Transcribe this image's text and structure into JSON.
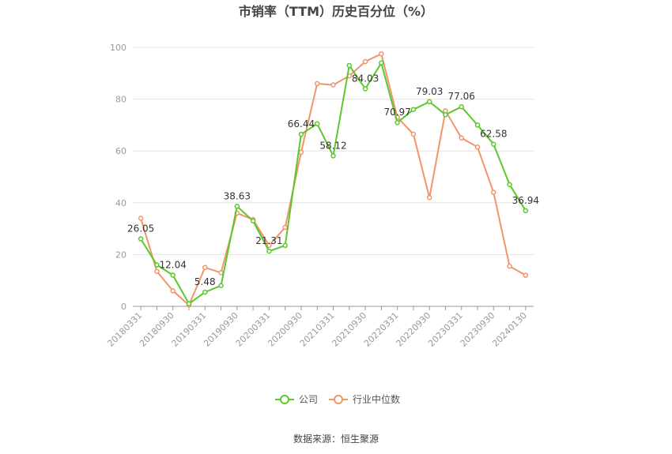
{
  "chart_data": {
    "type": "line",
    "title": "市销率（TTM）历史百分位（%）",
    "xlabel": "",
    "ylabel": "",
    "ylim": [
      0,
      100
    ],
    "yticks": [
      0,
      20,
      40,
      60,
      80,
      100
    ],
    "grid": true,
    "legend_position": "bottom",
    "x": [
      "20180331",
      "20180630",
      "20180930",
      "20181231",
      "20190331",
      "20190630",
      "20190930",
      "20191231",
      "20200331",
      "20200630",
      "20200930",
      "20201231",
      "20210331",
      "20210630",
      "20210930",
      "20211231",
      "20220331",
      "20220630",
      "20220930",
      "20221231",
      "20230331",
      "20230630",
      "20230930",
      "20231231",
      "20240130"
    ],
    "x_tick_labels": [
      "20180331",
      "20180930",
      "20190331",
      "20190930",
      "20200331",
      "20200930",
      "20210331",
      "20210930",
      "20220331",
      "20220930",
      "20230331",
      "20230930",
      "20240130"
    ],
    "series": [
      {
        "name": "公司",
        "color": "#5ac82b",
        "values": [
          26.05,
          16.0,
          12.04,
          1.0,
          5.48,
          8.0,
          38.63,
          33.0,
          21.31,
          23.5,
          66.44,
          70.5,
          58.12,
          93.0,
          84.03,
          94.0,
          70.97,
          76.0,
          79.03,
          74.0,
          77.06,
          70.0,
          62.58,
          47.0,
          36.94
        ],
        "labels": {
          "0": "26.05",
          "2": "12.04",
          "4": "5.48",
          "6": "38.63",
          "8": "21.31",
          "10": "66.44",
          "12": "58.12",
          "14": "84.03",
          "16": "70.97",
          "18": "79.03",
          "20": "77.06",
          "22": "62.58",
          "24": "36.94"
        }
      },
      {
        "name": "行业中位数",
        "color": "#f0956a",
        "values": [
          34.0,
          13.5,
          6.0,
          0.5,
          15.0,
          13.0,
          36.0,
          33.5,
          23.5,
          30.5,
          59.5,
          86.0,
          85.5,
          89.0,
          94.5,
          97.5,
          73.0,
          66.5,
          42.0,
          75.5,
          65.0,
          61.5,
          44.0,
          15.5,
          12.0
        ]
      }
    ]
  },
  "source": "数据来源：恒生聚源"
}
